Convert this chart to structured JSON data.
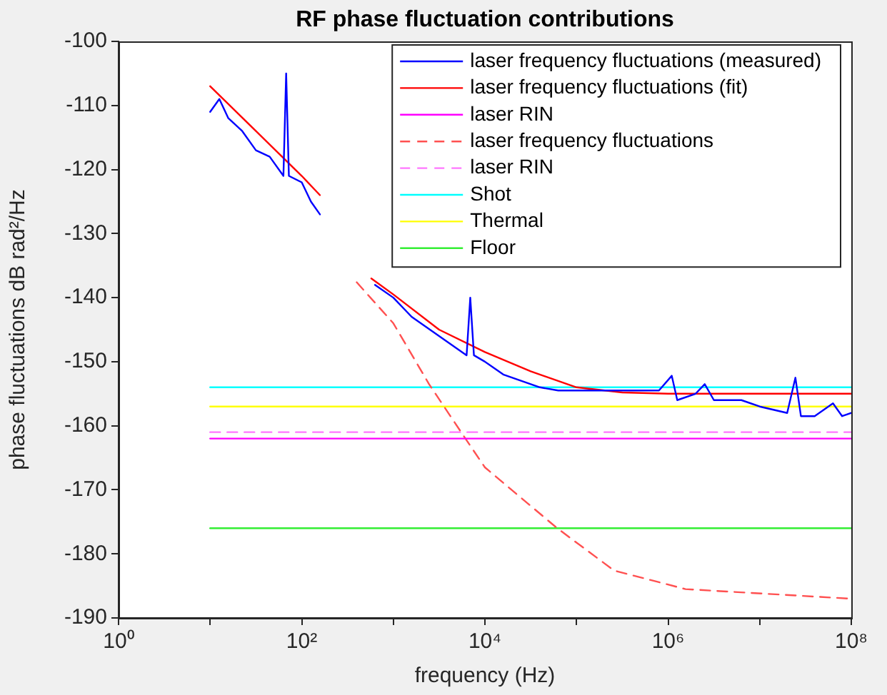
{
  "chart_data": {
    "type": "line",
    "title": "RF phase fluctuation contributions",
    "xlabel": "frequency (Hz)",
    "ylabel": "phase fluctuations dB rad²/Hz",
    "log": "x",
    "xlim": [
      1,
      100000000
    ],
    "ylim": [
      -190,
      -100
    ],
    "xticks": [
      {
        "value": 1,
        "label": "10⁰"
      },
      {
        "value": 10,
        "label": null
      },
      {
        "value": 100,
        "label": "10²"
      },
      {
        "value": 1000,
        "label": null
      },
      {
        "value": 10000,
        "label": "10⁴"
      },
      {
        "value": 100000,
        "label": null
      },
      {
        "value": 1000000,
        "label": "10⁶"
      },
      {
        "value": 10000000,
        "label": null
      },
      {
        "value": 100000000,
        "label": "10⁸"
      }
    ],
    "yticks": [
      -190,
      -180,
      -170,
      -160,
      -150,
      -140,
      -130,
      -120,
      -110,
      -100
    ],
    "grid": false,
    "legend": "top right",
    "marker": "none",
    "series": [
      {
        "name": "laser frequency fluctuations (measured)",
        "color": "#0000ff",
        "line_style": "solid",
        "x": [
          10,
          12.6,
          15.8,
          22.4,
          31.6,
          44.7,
          63.1,
          67.6,
          72.4,
          100,
          126,
          158,
          200,
          300,
          631,
          1000,
          1585,
          2512,
          3981,
          6310,
          6918,
          7586,
          10000,
          15849,
          25119,
          39811,
          63096,
          100000,
          316228,
          794328,
          1096478,
          1258925,
          1995262,
          2511886,
          3162278,
          6309573,
          10000000,
          19952623,
          24547089,
          28183829,
          39810717,
          63095734,
          79432823,
          100000000
        ],
        "values": [
          -111,
          -109,
          -112,
          -114,
          -117,
          -118,
          -121,
          -105,
          -121,
          -122,
          -125,
          -127,
          null,
          null,
          -138,
          -140,
          -143,
          -145,
          -147,
          -149,
          -140,
          -149,
          -150,
          -152,
          -153,
          -154,
          -154.5,
          -154.5,
          -154.5,
          -154.5,
          -152.2,
          -156,
          -155,
          -153.5,
          -156,
          -156,
          -157,
          -158,
          -152.5,
          -158.5,
          -158.5,
          -156.5,
          -158.5,
          -158
        ]
      },
      {
        "name": "laser frequency fluctuations (fit)",
        "color": "#ff0000",
        "line_style": "solid",
        "x": [
          10,
          31.6,
          100,
          158,
          200,
          575,
          1000,
          3162,
          10000,
          31623,
          100000,
          316228,
          1000000,
          100000000
        ],
        "values": [
          -107,
          -114,
          -121,
          -124,
          null,
          -137,
          -139.5,
          -145,
          -148.5,
          -151.5,
          -154,
          -154.8,
          -155,
          -155
        ]
      },
      {
        "name": "laser RIN",
        "color": "#ff00ff",
        "line_style": "solid",
        "x": [
          10,
          100000000
        ],
        "values": [
          -162,
          -162
        ]
      },
      {
        "name": "laser frequency fluctuations",
        "color": "#ff5050",
        "line_style": "dashed",
        "x": [
          398,
          1000,
          2455,
          5495,
          10000,
          61660,
          257040,
          1548817,
          100000000
        ],
        "values": [
          -137.6,
          -144,
          -153.5,
          -161,
          -166.5,
          -176,
          -182.6,
          -185.5,
          -187
        ]
      },
      {
        "name": "laser RIN",
        "color": "#ff77ff",
        "line_style": "dashed",
        "x": [
          10,
          100000000
        ],
        "values": [
          -161,
          -161
        ]
      },
      {
        "name": "Shot",
        "color": "#00ffff",
        "line_style": "solid",
        "x": [
          10,
          100000000
        ],
        "values": [
          -154,
          -154
        ]
      },
      {
        "name": "Thermal",
        "color": "#ffff00",
        "line_style": "solid",
        "x": [
          10,
          100000000
        ],
        "values": [
          -157,
          -157
        ]
      },
      {
        "name": "Floor",
        "color": "#33ee33",
        "line_style": "solid",
        "x": [
          10,
          100000000
        ],
        "values": [
          -176,
          -176
        ]
      }
    ]
  }
}
